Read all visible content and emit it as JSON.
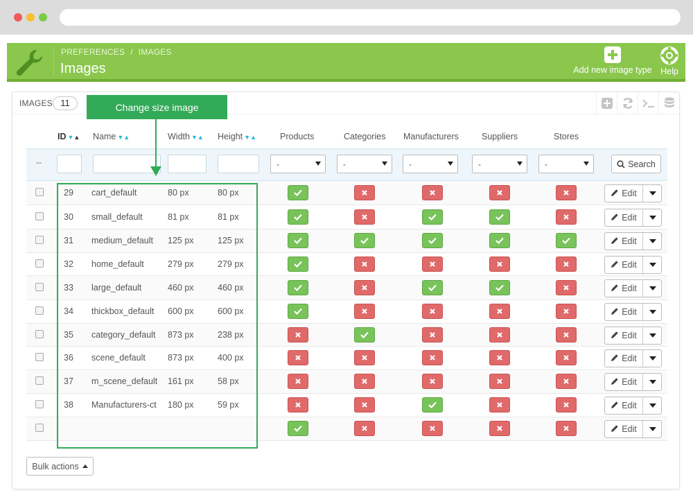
{
  "header": {
    "breadcrumb": [
      "PREFERENCES",
      "IMAGES"
    ],
    "title": "Images",
    "add_label": "Add new image type",
    "help_label": "Help",
    "color": "#8ac74c"
  },
  "panel": {
    "title": "IMAGES",
    "count": "11"
  },
  "callout": {
    "text": "Change size image"
  },
  "columns": {
    "id": "ID",
    "name": "Name",
    "width": "Width",
    "height": "Height",
    "products": "Products",
    "categories": "Categories",
    "manufacturers": "Manufacturers",
    "suppliers": "Suppliers",
    "stores": "Stores"
  },
  "filters": {
    "dashes": "--",
    "select_value": "-",
    "search_label": "Search"
  },
  "rows": [
    {
      "id": "29",
      "name": "cart_default",
      "width": "80 px",
      "height": "80 px",
      "flags": [
        true,
        false,
        false,
        false,
        false
      ]
    },
    {
      "id": "30",
      "name": "small_default",
      "width": "81 px",
      "height": "81 px",
      "flags": [
        true,
        false,
        true,
        true,
        false
      ]
    },
    {
      "id": "31",
      "name": "medium_default",
      "width": "125 px",
      "height": "125 px",
      "flags": [
        true,
        true,
        true,
        true,
        true
      ]
    },
    {
      "id": "32",
      "name": "home_default",
      "width": "279 px",
      "height": "279 px",
      "flags": [
        true,
        false,
        false,
        false,
        false
      ]
    },
    {
      "id": "33",
      "name": "large_default",
      "width": "460 px",
      "height": "460 px",
      "flags": [
        true,
        false,
        true,
        true,
        false
      ]
    },
    {
      "id": "34",
      "name": "thickbox_default",
      "width": "600 px",
      "height": "600 px",
      "flags": [
        true,
        false,
        false,
        false,
        false
      ]
    },
    {
      "id": "35",
      "name": "category_default",
      "width": "873 px",
      "height": "238 px",
      "flags": [
        false,
        true,
        false,
        false,
        false
      ]
    },
    {
      "id": "36",
      "name": "scene_default",
      "width": "873 px",
      "height": "400 px",
      "flags": [
        false,
        false,
        false,
        false,
        false
      ]
    },
    {
      "id": "37",
      "name": "m_scene_default",
      "width": "161 px",
      "height": "58 px",
      "flags": [
        false,
        false,
        false,
        false,
        false
      ]
    },
    {
      "id": "38",
      "name": "Manufacturers-ct",
      "width": "180 px",
      "height": "59 px",
      "flags": [
        false,
        false,
        true,
        false,
        false
      ]
    },
    {
      "id": "",
      "name": "",
      "width": "",
      "height": "",
      "flags": [
        true,
        false,
        false,
        false,
        false
      ]
    }
  ],
  "row_actions": {
    "edit_label": "Edit"
  },
  "bulk": {
    "label": "Bulk actions"
  }
}
